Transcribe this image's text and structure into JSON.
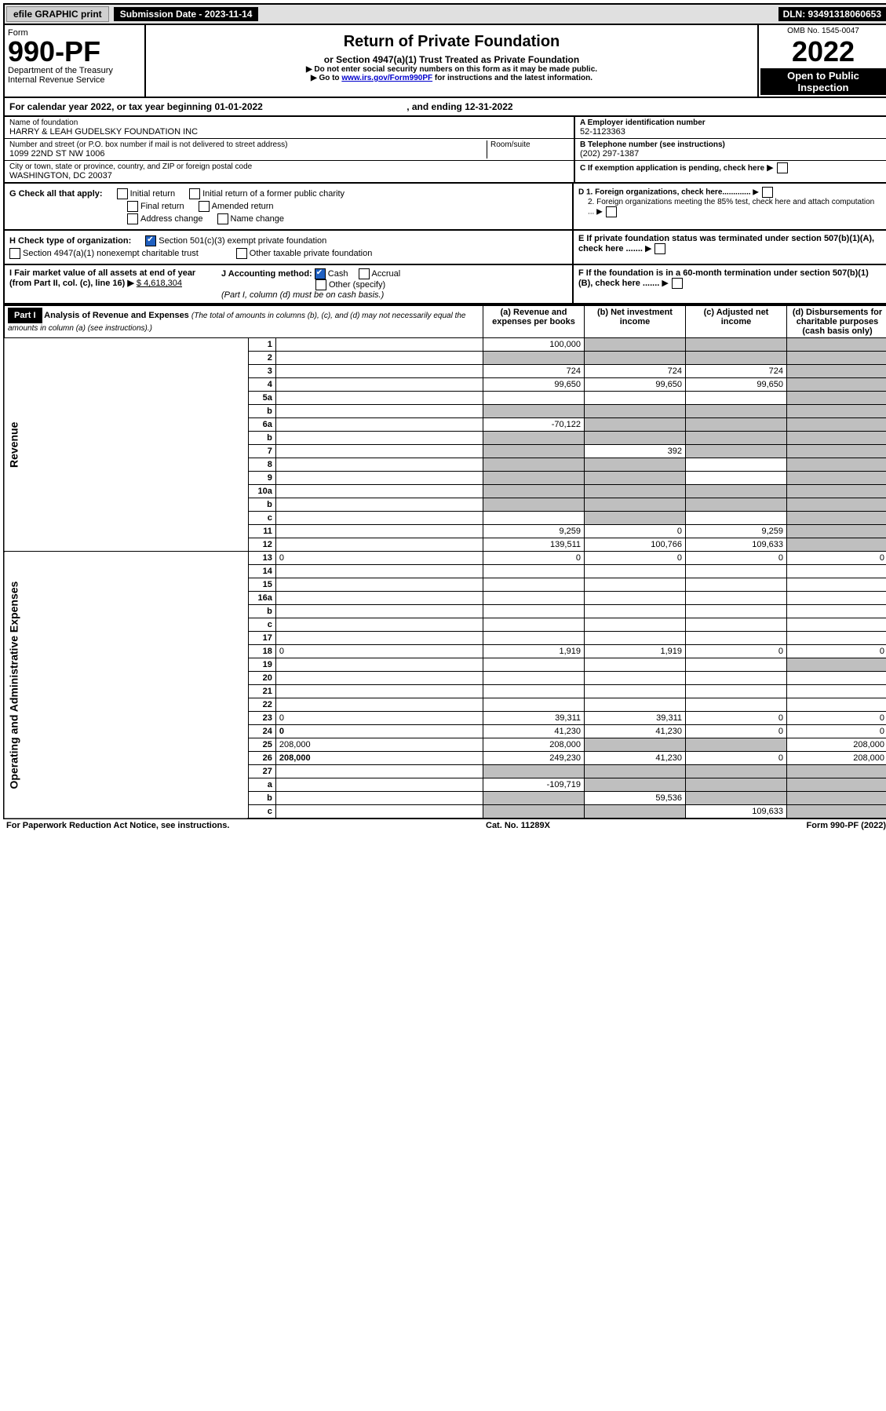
{
  "topbar": {
    "efile": "efile GRAPHIC print",
    "submission": "Submission Date - 2023-11-14",
    "dln": "DLN: 93491318060653"
  },
  "header": {
    "form_label": "Form",
    "form_no": "990-PF",
    "dept": "Department of the Treasury",
    "irs": "Internal Revenue Service",
    "title": "Return of Private Foundation",
    "subtitle": "or Section 4947(a)(1) Trust Treated as Private Foundation",
    "note1": "▶ Do not enter social security numbers on this form as it may be made public.",
    "note2": "▶ Go to ",
    "link": "www.irs.gov/Form990PF",
    "note2b": " for instructions and the latest information.",
    "omb": "OMB No. 1545-0047",
    "year": "2022",
    "open_l1": "Open to Public",
    "open_l2": "Inspection"
  },
  "calendar": {
    "text_a": "For calendar year 2022, or tax year beginning ",
    "begin": "01-01-2022",
    "text_b": ", and ending ",
    "end": "12-31-2022"
  },
  "foundation": {
    "name_label": "Name of foundation",
    "name": "HARRY & LEAH GUDELSKY FOUNDATION INC",
    "addr_label": "Number and street (or P.O. box number if mail is not delivered to street address)",
    "addr": "1099 22ND ST NW 1006",
    "room_label": "Room/suite",
    "city_label": "City or town, state or province, country, and ZIP or foreign postal code",
    "city": "WASHINGTON, DC  20037",
    "ein_label": "A Employer identification number",
    "ein": "52-1123363",
    "phone_label": "B Telephone number (see instructions)",
    "phone": "(202) 297-1387",
    "c_label": "C If exemption application is pending, check here",
    "d1": "D 1. Foreign organizations, check here.............",
    "d2": "2. Foreign organizations meeting the 85% test, check here and attach computation ...",
    "e": "E  If private foundation status was terminated under section 507(b)(1)(A), check here .......",
    "f": "F  If the foundation is in a 60-month termination under section 507(b)(1)(B), check here ......."
  },
  "checks": {
    "g_label": "G Check all that apply:",
    "initial": "Initial return",
    "initial_former": "Initial return of a former public charity",
    "final": "Final return",
    "amended": "Amended return",
    "address": "Address change",
    "namechg": "Name change",
    "h_label": "H Check type of organization:",
    "h_501c3": "Section 501(c)(3) exempt private foundation",
    "h_4947": "Section 4947(a)(1) nonexempt charitable trust",
    "h_other": "Other taxable private foundation",
    "i_label": "I Fair market value of all assets at end of year (from Part II, col. (c), line 16) ▶",
    "i_val": "$  4,618,304",
    "j_label": "J Accounting method:",
    "j_cash": "Cash",
    "j_accrual": "Accrual",
    "j_other": "Other (specify)",
    "j_note": "(Part I, column (d) must be on cash basis.)"
  },
  "part1": {
    "badge": "Part I",
    "title": "Analysis of Revenue and Expenses",
    "subtitle": "(The total of amounts in columns (b), (c), and (d) may not necessarily equal the amounts in column (a) (see instructions).)",
    "col_a": "(a) Revenue and expenses per books",
    "col_b": "(b) Net investment income",
    "col_c": "(c) Adjusted net income",
    "col_d": "(d) Disbursements for charitable purposes (cash basis only)"
  },
  "side": {
    "revenue": "Revenue",
    "expenses": "Operating and Administrative Expenses"
  },
  "rows": [
    {
      "n": "1",
      "d": "",
      "a": "100,000",
      "b": "",
      "c": "",
      "grey": [
        "b",
        "c",
        "d"
      ]
    },
    {
      "n": "2",
      "d": "",
      "a": "",
      "b": "",
      "c": "",
      "grey": [
        "a",
        "b",
        "c",
        "d"
      ]
    },
    {
      "n": "3",
      "d": "",
      "a": "724",
      "b": "724",
      "c": "724",
      "grey": [
        "d"
      ]
    },
    {
      "n": "4",
      "d": "",
      "a": "99,650",
      "b": "99,650",
      "c": "99,650",
      "grey": [
        "d"
      ]
    },
    {
      "n": "5a",
      "d": "",
      "a": "",
      "b": "",
      "c": "",
      "grey": [
        "d"
      ]
    },
    {
      "n": "b",
      "d": "",
      "a": "",
      "b": "",
      "c": "",
      "grey": [
        "a",
        "b",
        "c",
        "d"
      ]
    },
    {
      "n": "6a",
      "d": "",
      "a": "-70,122",
      "b": "",
      "c": "",
      "grey": [
        "b",
        "c",
        "d"
      ]
    },
    {
      "n": "b",
      "d": "",
      "a": "",
      "b": "",
      "c": "",
      "grey": [
        "a",
        "b",
        "c",
        "d"
      ]
    },
    {
      "n": "7",
      "d": "",
      "a": "",
      "b": "392",
      "c": "",
      "grey": [
        "a",
        "c",
        "d"
      ]
    },
    {
      "n": "8",
      "d": "",
      "a": "",
      "b": "",
      "c": "",
      "grey": [
        "a",
        "b",
        "d"
      ]
    },
    {
      "n": "9",
      "d": "",
      "a": "",
      "b": "",
      "c": "",
      "grey": [
        "a",
        "b",
        "d"
      ]
    },
    {
      "n": "10a",
      "d": "",
      "a": "",
      "b": "",
      "c": "",
      "grey": [
        "a",
        "b",
        "c",
        "d"
      ]
    },
    {
      "n": "b",
      "d": "",
      "a": "",
      "b": "",
      "c": "",
      "grey": [
        "a",
        "b",
        "c",
        "d"
      ]
    },
    {
      "n": "c",
      "d": "",
      "a": "",
      "b": "",
      "c": "",
      "grey": [
        "b",
        "d"
      ]
    },
    {
      "n": "11",
      "d": "",
      "a": "9,259",
      "b": "0",
      "c": "9,259",
      "grey": [
        "d"
      ]
    },
    {
      "n": "12",
      "d": "",
      "a": "139,511",
      "b": "100,766",
      "c": "109,633",
      "grey": [
        "d"
      ],
      "bold": true
    },
    {
      "n": "13",
      "d": "0",
      "a": "0",
      "b": "0",
      "c": "0"
    },
    {
      "n": "14",
      "d": "",
      "a": "",
      "b": "",
      "c": ""
    },
    {
      "n": "15",
      "d": "",
      "a": "",
      "b": "",
      "c": ""
    },
    {
      "n": "16a",
      "d": "",
      "a": "",
      "b": "",
      "c": ""
    },
    {
      "n": "b",
      "d": "",
      "a": "",
      "b": "",
      "c": ""
    },
    {
      "n": "c",
      "d": "",
      "a": "",
      "b": "",
      "c": ""
    },
    {
      "n": "17",
      "d": "",
      "a": "",
      "b": "",
      "c": ""
    },
    {
      "n": "18",
      "d": "0",
      "a": "1,919",
      "b": "1,919",
      "c": "0"
    },
    {
      "n": "19",
      "d": "",
      "a": "",
      "b": "",
      "c": "",
      "grey": [
        "d"
      ]
    },
    {
      "n": "20",
      "d": "",
      "a": "",
      "b": "",
      "c": ""
    },
    {
      "n": "21",
      "d": "",
      "a": "",
      "b": "",
      "c": ""
    },
    {
      "n": "22",
      "d": "",
      "a": "",
      "b": "",
      "c": ""
    },
    {
      "n": "23",
      "d": "0",
      "a": "39,311",
      "b": "39,311",
      "c": "0"
    },
    {
      "n": "24",
      "d": "0",
      "a": "41,230",
      "b": "41,230",
      "c": "0",
      "bold": true
    },
    {
      "n": "25",
      "d": "208,000",
      "a": "208,000",
      "b": "",
      "c": "",
      "grey": [
        "b",
        "c"
      ]
    },
    {
      "n": "26",
      "d": "208,000",
      "a": "249,230",
      "b": "41,230",
      "c": "0",
      "bold": true
    },
    {
      "n": "27",
      "d": "",
      "a": "",
      "b": "",
      "c": "",
      "grey": [
        "a",
        "b",
        "c",
        "d"
      ]
    },
    {
      "n": "a",
      "d": "",
      "a": "-109,719",
      "b": "",
      "c": "",
      "grey": [
        "b",
        "c",
        "d"
      ],
      "bold": true
    },
    {
      "n": "b",
      "d": "",
      "a": "",
      "b": "59,536",
      "c": "",
      "grey": [
        "a",
        "c",
        "d"
      ],
      "bold": true
    },
    {
      "n": "c",
      "d": "",
      "a": "",
      "b": "",
      "c": "109,633",
      "grey": [
        "a",
        "b",
        "d"
      ],
      "bold": true
    }
  ],
  "footer": {
    "left": "For Paperwork Reduction Act Notice, see instructions.",
    "mid": "Cat. No. 11289X",
    "right": "Form 990-PF (2022)"
  }
}
